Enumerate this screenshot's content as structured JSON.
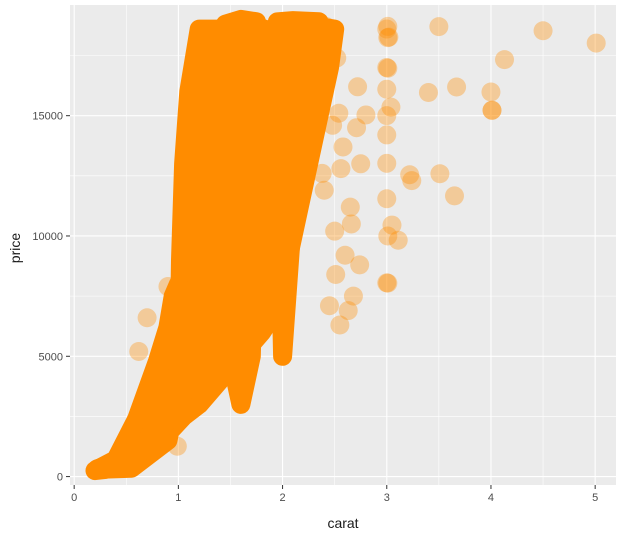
{
  "chart_data": {
    "type": "scatter",
    "title": "",
    "xlabel": "carat",
    "ylabel": "price",
    "xlim": [
      -0.04,
      5.2
    ],
    "ylim": [
      -350,
      19600
    ],
    "x_ticks": [
      0,
      1,
      2,
      3,
      4,
      5
    ],
    "x_tick_labels": [
      "0",
      "1",
      "2",
      "3",
      "4",
      "5"
    ],
    "y_ticks": [
      0,
      5000,
      10000,
      15000
    ],
    "y_tick_labels": [
      "0",
      "5000",
      "10000",
      "15000"
    ],
    "x_minor_ticks": [
      0.5,
      1.5,
      2.5,
      3.5,
      4.5
    ],
    "y_minor_ticks": [
      2500,
      7500,
      12500,
      17500
    ],
    "grid": true,
    "legend": "none",
    "colors": {
      "point": "#ff8c00",
      "panel": "#ebebeb",
      "grid": "#ffffff"
    },
    "point_alpha": 0.35,
    "series": [
      {
        "x": [
          5.01,
          4.5,
          4.13,
          4.01,
          4.01,
          4.0,
          3.67,
          3.65,
          3.51,
          3.5,
          3.4,
          3.24,
          3.22,
          3.11,
          3.05,
          3.04,
          3.02,
          3.01,
          3.01,
          3.01,
          3.01,
          3.01,
          3.0,
          3.0,
          3.0,
          3.0,
          3.0,
          3.0,
          3.0,
          3.0,
          2.8,
          2.75,
          2.74,
          2.72,
          2.71,
          2.68,
          2.66,
          2.65,
          2.63,
          2.6,
          2.58,
          2.56,
          2.55,
          2.54,
          2.52,
          2.51,
          2.5,
          2.48,
          2.45,
          2.42,
          2.4,
          2.38,
          0.99,
          0.9,
          0.7,
          0.62,
          0.25,
          0.23
        ],
        "y": [
          18018,
          18531,
          17329,
          15223,
          15223,
          15984,
          16193,
          11668,
          12587,
          18701,
          15964,
          12300,
          12545,
          9823,
          10453,
          15354,
          18266,
          18242,
          18710,
          16970,
          10000,
          8040,
          8050,
          11548,
          13020,
          14200,
          15002,
          16100,
          17000,
          18600,
          15030,
          13000,
          8800,
          16200,
          14500,
          7500,
          10500,
          11200,
          6900,
          9200,
          13700,
          12800,
          6300,
          15100,
          17400,
          8400,
          10200,
          14600,
          7100,
          18700,
          11900,
          12600,
          1260,
          7900,
          6600,
          5200,
          300,
          340
        ]
      }
    ]
  }
}
